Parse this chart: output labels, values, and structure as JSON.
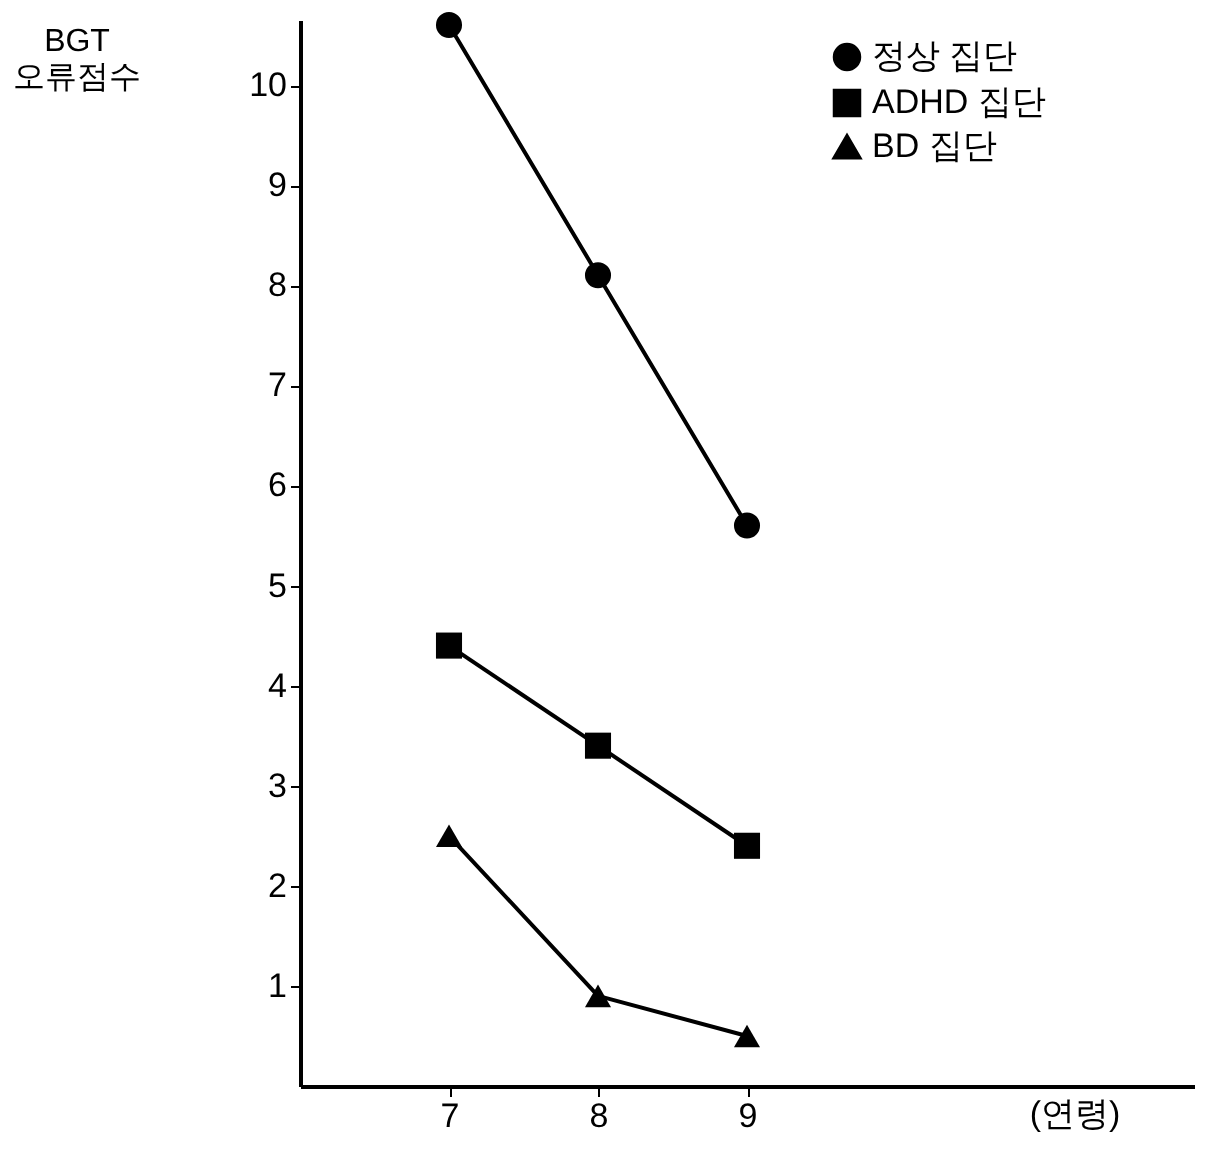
{
  "chart_data": {
    "type": "line",
    "xlabel": "(연령)",
    "ylabel": "BGT\n오류점수",
    "x": [
      7,
      8,
      9
    ],
    "xlim": [
      6,
      12
    ],
    "xticks": [
      7,
      8,
      9
    ],
    "ylim": [
      0,
      10.65
    ],
    "yticks": [
      1,
      2,
      3,
      4,
      5,
      6,
      7,
      8,
      9,
      10
    ],
    "grid": false,
    "legend": "top right",
    "line_style": "solid",
    "series": [
      {
        "name": "정상 집단",
        "color": "#000000",
        "marker": "circle",
        "values": [
          10.6,
          8.1,
          5.6
        ]
      },
      {
        "name": "ADHD 집단",
        "color": "#000000",
        "marker": "square",
        "values": [
          4.4,
          3.4,
          2.4
        ]
      },
      {
        "name": "BD 집단",
        "color": "#000000",
        "marker": "triangle",
        "values": [
          2.5,
          0.9,
          0.5
        ]
      }
    ]
  }
}
